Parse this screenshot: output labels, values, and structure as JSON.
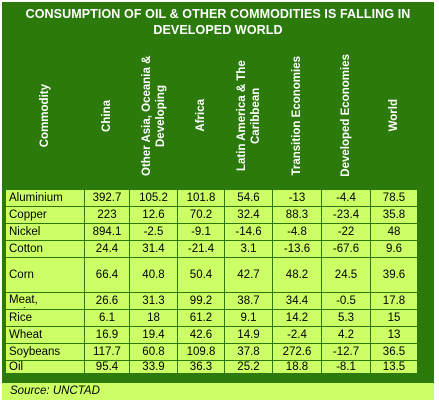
{
  "title_line1": "CONSUMPTION OF OIL & OTHER COMMODITIES IS FALLING IN",
  "title_line2": "DEVELOPED WORLD",
  "source": "Source:  UNCTAD",
  "chart_data": {
    "type": "table",
    "title": "CONSUMPTION OF OIL & OTHER COMMODITIES IS FALLING IN DEVELOPED WORLD",
    "columns": [
      "Commodity",
      "China",
      "Other Asia, Oceania & Developing",
      "Africa",
      "Latin America & The Caribbean",
      "Transition Economies",
      "Developed Economies",
      "World"
    ],
    "rows": [
      [
        "Aluminium",
        "392.7",
        "105.2",
        "101.8",
        "54.6",
        "-13",
        "-4.4",
        "78.5"
      ],
      [
        "Copper",
        "223",
        "12.6",
        "70.2",
        "32.4",
        "88.3",
        "-23.4",
        "35.8"
      ],
      [
        "Nickel",
        "894.1",
        "-2.5",
        "-9.1",
        "-14.6",
        "-4.8",
        "-22",
        "48"
      ],
      [
        "Cotton",
        "24.4",
        "31.4",
        "-21.4",
        "3.1",
        "-13.6",
        "-67.6",
        "9.6"
      ],
      [
        "Corn",
        "66.4",
        "40.8",
        "50.4",
        "42.7",
        "48.2",
        "24.5",
        "39.6"
      ],
      [
        "Meat, swine",
        "26.6",
        "31.3",
        "99.2",
        "38.7",
        "34.4",
        "-0.5",
        "17.8"
      ],
      [
        "Rice",
        "6.1",
        "18",
        "61.2",
        "9.1",
        "14.2",
        "5.3",
        "15"
      ],
      [
        "Wheat",
        "16.9",
        "19.4",
        "42.6",
        "14.9",
        "-2.4",
        "4.2",
        "13"
      ],
      [
        "Soybeans",
        "117.7",
        "60.8",
        "109.8",
        "37.8",
        "272.6",
        "-12.7",
        "36.5"
      ],
      [
        "Oil",
        "95.4",
        "33.9",
        "36.3",
        "25.2",
        "18.8",
        "-8.1",
        "13.5"
      ]
    ]
  }
}
